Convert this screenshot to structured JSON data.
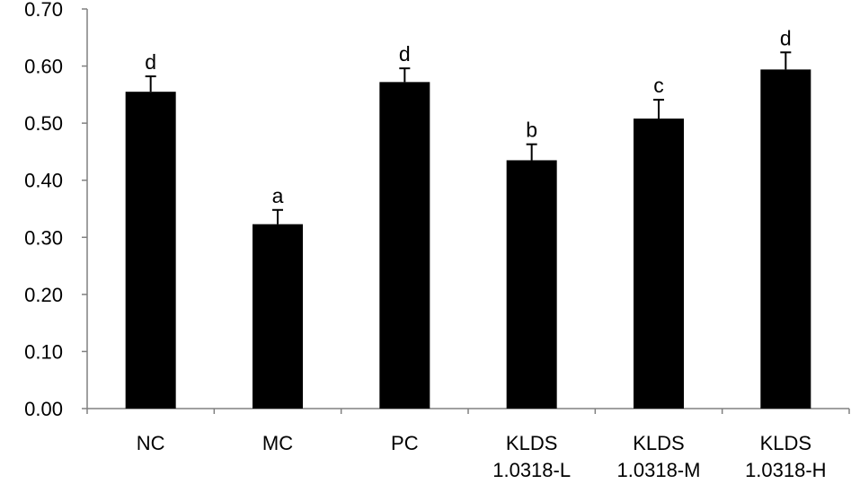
{
  "chart_data": {
    "type": "bar",
    "title": "",
    "xlabel": "",
    "ylabel": "",
    "ylim": [
      0,
      0.7
    ],
    "yticks": [
      "0.00",
      "0.10",
      "0.20",
      "0.30",
      "0.40",
      "0.50",
      "0.60",
      "0.70"
    ],
    "grid": false,
    "legend": "none",
    "categories": [
      [
        "NC"
      ],
      [
        "MC"
      ],
      [
        "PC"
      ],
      [
        "KLDS",
        "1.0318-L"
      ],
      [
        "KLDS",
        "1.0318-M"
      ],
      [
        "KLDS",
        "1.0318-H"
      ]
    ],
    "values": [
      0.555,
      0.323,
      0.572,
      0.435,
      0.508,
      0.594
    ],
    "errors": [
      0.027,
      0.025,
      0.024,
      0.028,
      0.033,
      0.03
    ],
    "significance": [
      "d",
      "a",
      "d",
      "b",
      "c",
      "d"
    ],
    "bar_color": "#000000",
    "axis_color": "#808080"
  }
}
